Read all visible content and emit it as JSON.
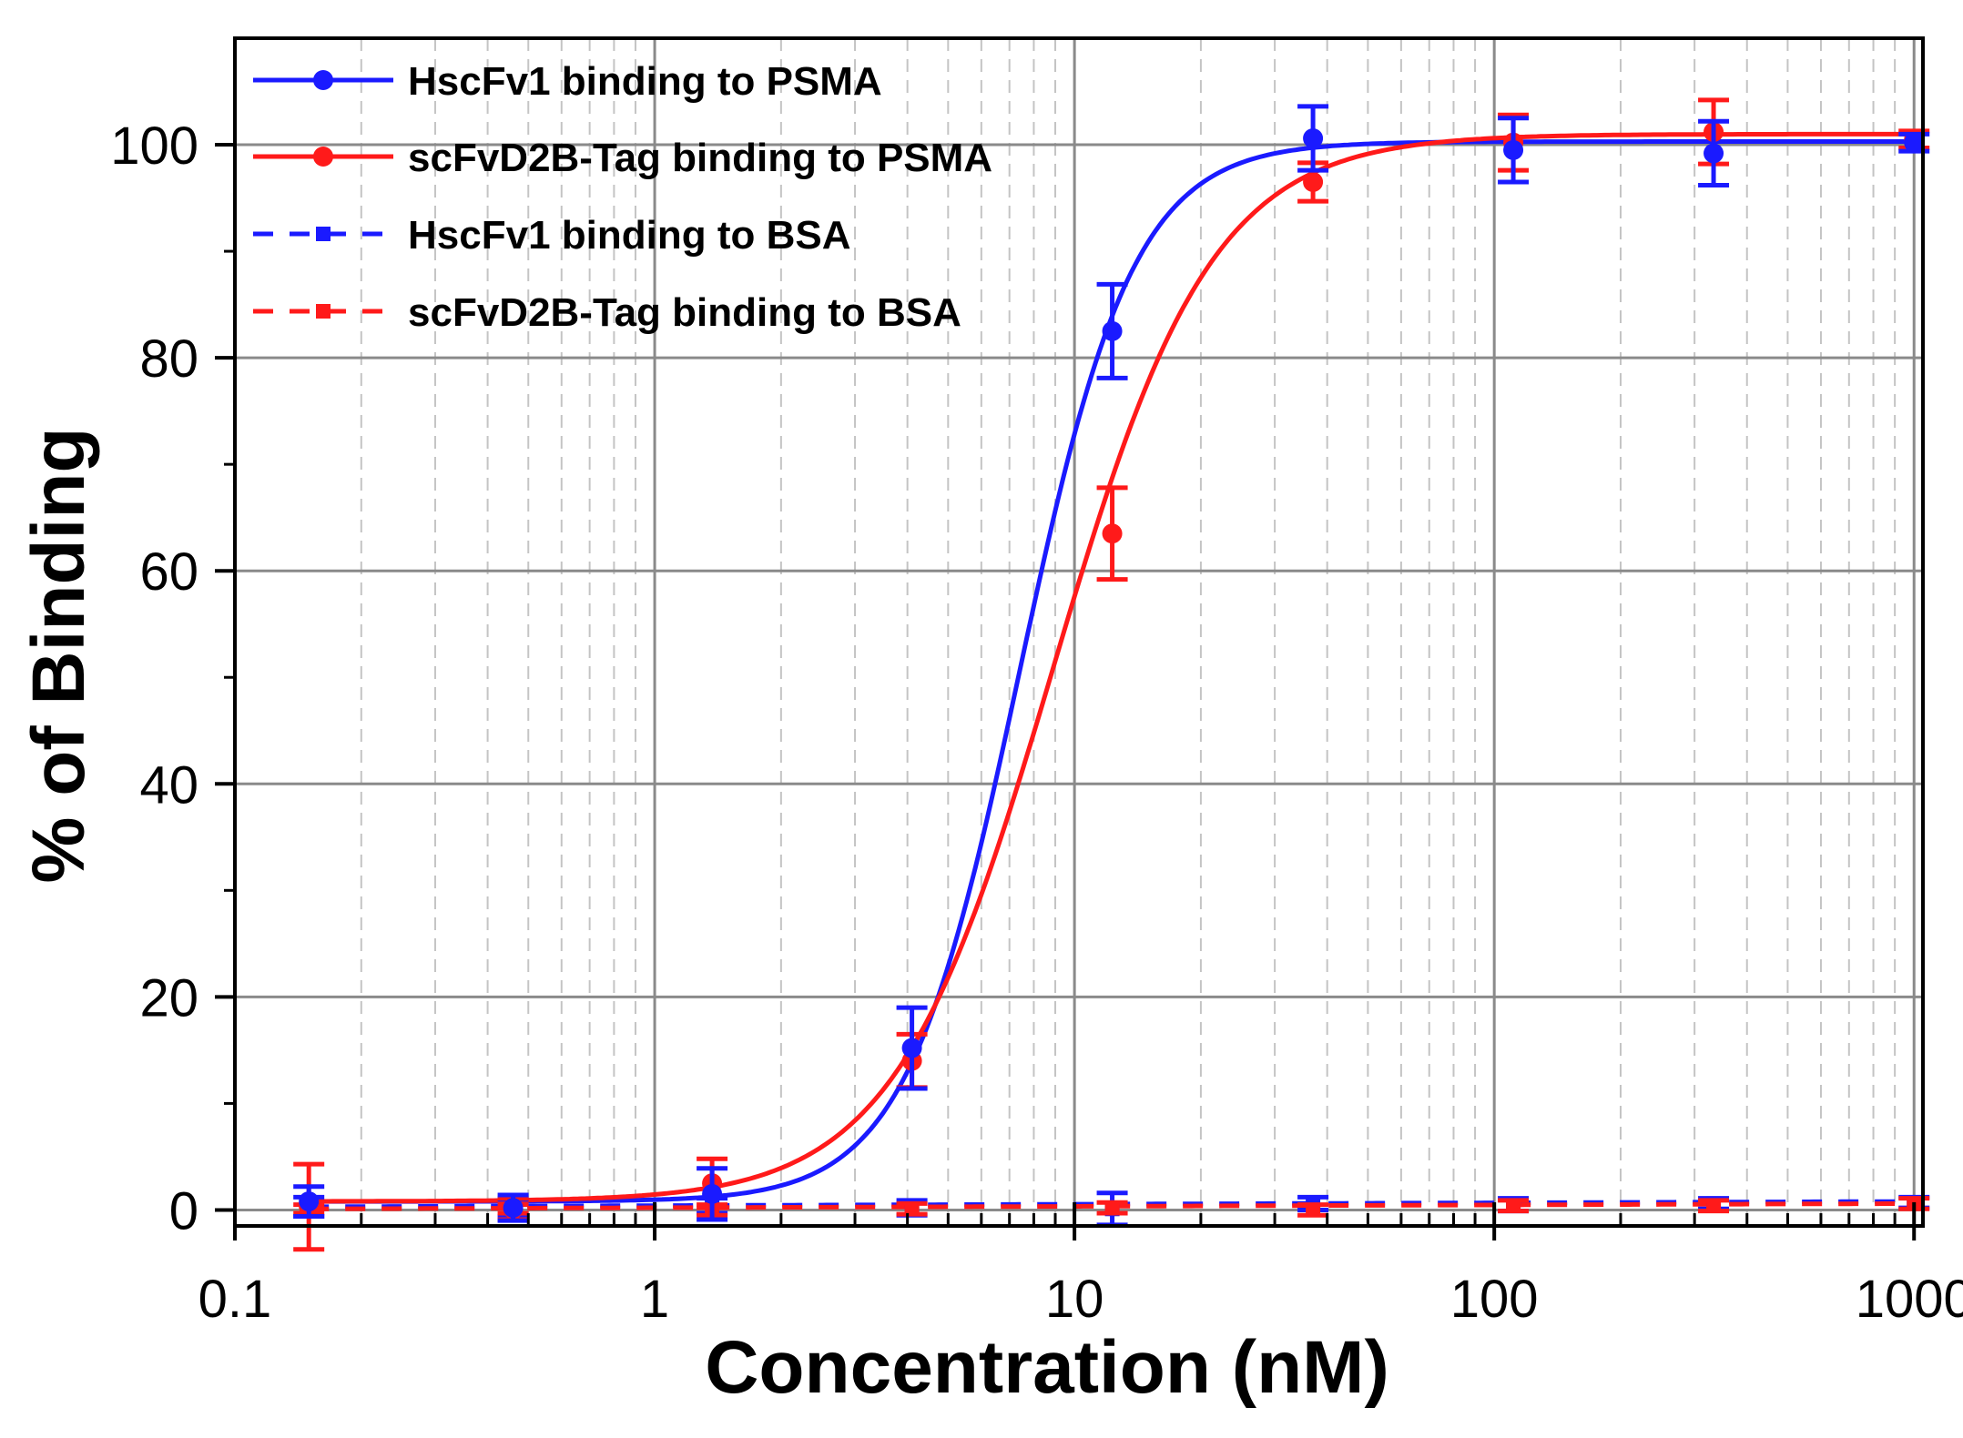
{
  "chart_data": {
    "type": "line",
    "xscale": "log",
    "xlabel": "Concentration (nM)",
    "ylabel": "% of Binding",
    "xlim": [
      0.1,
      1050
    ],
    "ylim": [
      -1.5,
      110
    ],
    "xticks": [
      {
        "value": 0.1,
        "label": "0.1"
      },
      {
        "value": 1,
        "label": "1"
      },
      {
        "value": 10,
        "label": "10"
      },
      {
        "value": 100,
        "label": "100"
      },
      {
        "value": 1000,
        "label": "1000"
      }
    ],
    "yticks": [
      {
        "value": 0,
        "label": "0"
      },
      {
        "value": 20,
        "label": "20"
      },
      {
        "value": 40,
        "label": "40"
      },
      {
        "value": 60,
        "label": "60"
      },
      {
        "value": 80,
        "label": "80"
      },
      {
        "value": 100,
        "label": "100"
      }
    ],
    "grid": true,
    "legend_position": "top-left",
    "series": [
      {
        "name": "HscFv1 binding to PSMA",
        "color": "#1a1aff",
        "style": "solid",
        "marker": "circle",
        "x": [
          0.15,
          0.46,
          1.37,
          4.1,
          12.3,
          37,
          111,
          333,
          1000
        ],
        "y": [
          0.8,
          0.2,
          1.5,
          15.2,
          82.5,
          100.6,
          99.5,
          99.2,
          100.2
        ],
        "err": [
          1.4,
          1.2,
          2.4,
          3.8,
          4.4,
          3.0,
          3.0,
          3.0,
          0.8
        ],
        "fit": {
          "bottom": 0.8,
          "top": 100.3,
          "ec50": 7.4,
          "hill": 3.2
        }
      },
      {
        "name": "scFvD2B-Tag binding to PSMA",
        "color": "#ff1a1a",
        "style": "solid",
        "marker": "circle",
        "x": [
          0.15,
          0.46,
          1.37,
          4.1,
          12.3,
          37,
          111,
          333,
          1000
        ],
        "y": [
          0.3,
          0.1,
          2.5,
          14.0,
          63.5,
          96.5,
          100.2,
          101.2,
          100.5
        ],
        "err": [
          4.0,
          1.0,
          2.3,
          2.5,
          4.3,
          1.8,
          2.6,
          3.0,
          0.8
        ],
        "fit": {
          "bottom": 0.8,
          "top": 101.0,
          "ec50": 8.9,
          "hill": 2.3
        }
      },
      {
        "name": "HscFv1 binding to BSA",
        "color": "#1a1aff",
        "style": "dashed",
        "marker": "square",
        "x": [
          0.15,
          0.46,
          1.37,
          4.1,
          12.3,
          37,
          111,
          333,
          1000
        ],
        "y": [
          0.3,
          0.2,
          0.4,
          0.2,
          0.1,
          0.6,
          0.5,
          0.6,
          0.7
        ],
        "err": [
          0.9,
          0.8,
          0.7,
          0.7,
          1.5,
          0.6,
          0.6,
          0.5,
          0.5
        ],
        "fit": {
          "linear": [
            0.3,
            0.8
          ]
        }
      },
      {
        "name": "scFvD2B-Tag binding to BSA",
        "color": "#ff1a1a",
        "style": "dashed",
        "marker": "square",
        "x": [
          0.15,
          0.46,
          1.37,
          4.1,
          12.3,
          37,
          111,
          333,
          1000
        ],
        "y": [
          0.1,
          0.1,
          0.0,
          0.1,
          0.2,
          0.0,
          0.4,
          0.4,
          0.6
        ],
        "err": [
          0.4,
          0.4,
          0.5,
          0.5,
          0.5,
          0.5,
          0.5,
          0.5,
          0.5
        ],
        "fit": {
          "linear": [
            0.1,
            0.6
          ]
        }
      }
    ]
  }
}
